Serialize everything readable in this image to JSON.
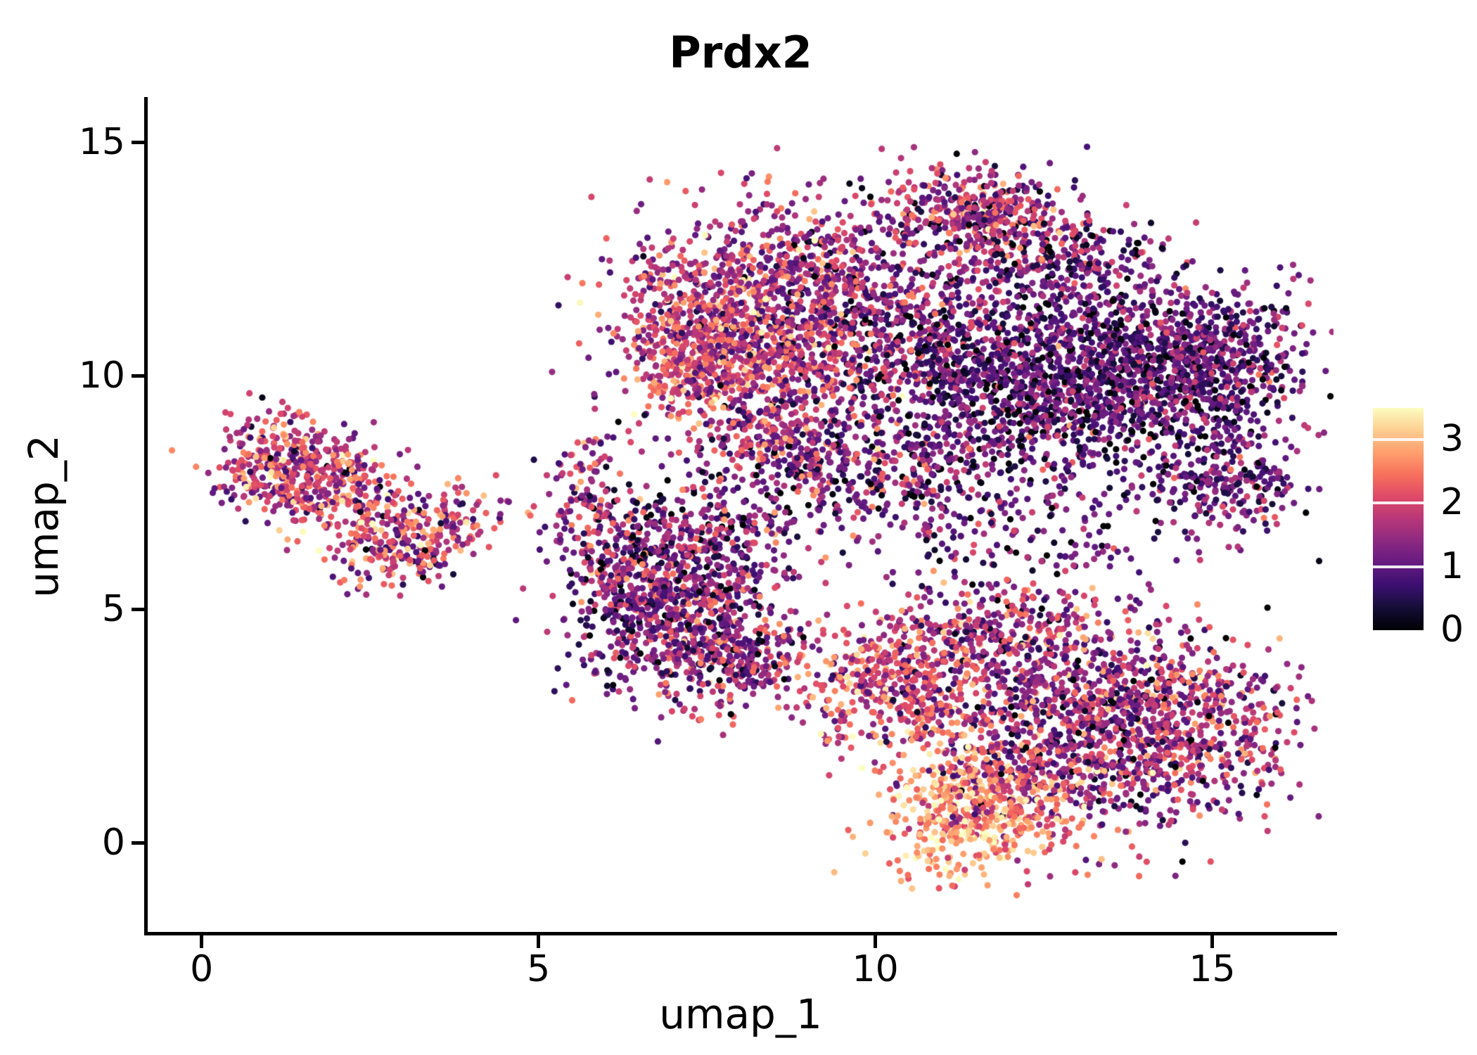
{
  "figure": {
    "background": "#ffffff"
  },
  "chart_data": {
    "type": "scatter",
    "title": "Prdx2",
    "xlabel": "umap_1",
    "ylabel": "umap_2",
    "xlim": [
      -0.8,
      16.8
    ],
    "ylim": [
      -1.9,
      15.9
    ],
    "xticks": [
      0,
      5,
      10,
      15
    ],
    "yticks": [
      0,
      5,
      10,
      15
    ],
    "grid": false,
    "point_radius_px": 4.6,
    "seed": 42,
    "colormap": {
      "name": "magma",
      "stops": [
        {
          "t": 0.0,
          "color": "#000004"
        },
        {
          "t": 0.1,
          "color": "#140e36"
        },
        {
          "t": 0.2,
          "color": "#3b0f70"
        },
        {
          "t": 0.3,
          "color": "#641a80"
        },
        {
          "t": 0.4,
          "color": "#8c2981"
        },
        {
          "t": 0.5,
          "color": "#b73779"
        },
        {
          "t": 0.6,
          "color": "#de4968"
        },
        {
          "t": 0.7,
          "color": "#f7705c"
        },
        {
          "t": 0.8,
          "color": "#fe9f6d"
        },
        {
          "t": 0.9,
          "color": "#fece91"
        },
        {
          "t": 1.0,
          "color": "#fcfdbf"
        }
      ]
    },
    "colorbar": {
      "position": "right",
      "vmin": 0,
      "vmax": 3.5,
      "ticks": [
        0,
        1,
        2,
        3
      ]
    },
    "clusters": [
      {
        "cx": 1.2,
        "cy": 8.1,
        "sx": 0.5,
        "sy": 0.55,
        "n": 320,
        "v_mean": 1.9,
        "v_sd": 0.75
      },
      {
        "cx": 2.0,
        "cy": 7.6,
        "sx": 0.55,
        "sy": 0.5,
        "n": 200,
        "v_mean": 1.8,
        "v_sd": 0.75
      },
      {
        "cx": 2.9,
        "cy": 6.4,
        "sx": 0.55,
        "sy": 0.45,
        "n": 230,
        "v_mean": 1.8,
        "v_sd": 0.8
      },
      {
        "cx": 3.6,
        "cy": 7.0,
        "sx": 0.45,
        "sy": 0.35,
        "n": 90,
        "v_mean": 1.9,
        "v_sd": 0.7
      },
      {
        "cx": 5.7,
        "cy": 7.5,
        "sx": 0.35,
        "sy": 0.7,
        "n": 110,
        "v_mean": 1.7,
        "v_sd": 0.8
      },
      {
        "cx": 6.1,
        "cy": 6.2,
        "sx": 0.4,
        "sy": 0.6,
        "n": 110,
        "v_mean": 1.5,
        "v_sd": 0.8
      },
      {
        "cx": 6.9,
        "cy": 5.0,
        "sx": 0.7,
        "sy": 0.9,
        "n": 650,
        "v_mean": 1.2,
        "v_sd": 0.7
      },
      {
        "cx": 7.9,
        "cy": 4.0,
        "sx": 0.55,
        "sy": 0.6,
        "n": 280,
        "v_mean": 1.5,
        "v_sd": 0.75
      },
      {
        "cx": 7.6,
        "cy": 6.4,
        "sx": 0.8,
        "sy": 0.6,
        "n": 280,
        "v_mean": 1.2,
        "v_sd": 0.7
      },
      {
        "cx": 7.9,
        "cy": 11.5,
        "sx": 0.9,
        "sy": 1.0,
        "n": 800,
        "v_mean": 1.7,
        "v_sd": 0.75
      },
      {
        "cx": 7.2,
        "cy": 10.4,
        "sx": 0.45,
        "sy": 0.7,
        "n": 260,
        "v_mean": 2.2,
        "v_sd": 0.6
      },
      {
        "cx": 8.5,
        "cy": 10.2,
        "sx": 0.8,
        "sy": 0.5,
        "n": 320,
        "v_mean": 1.9,
        "v_sd": 0.7
      },
      {
        "cx": 9.3,
        "cy": 12.1,
        "sx": 0.6,
        "sy": 0.7,
        "n": 260,
        "v_mean": 1.4,
        "v_sd": 0.75
      },
      {
        "cx": 10.4,
        "cy": 10.9,
        "sx": 0.8,
        "sy": 0.9,
        "n": 420,
        "v_mean": 1.2,
        "v_sd": 0.7
      },
      {
        "cx": 11.4,
        "cy": 13.5,
        "sx": 0.85,
        "sy": 0.5,
        "n": 420,
        "v_mean": 1.6,
        "v_sd": 0.75
      },
      {
        "cx": 12.6,
        "cy": 12.5,
        "sx": 0.8,
        "sy": 0.6,
        "n": 330,
        "v_mean": 1.1,
        "v_sd": 0.7
      },
      {
        "cx": 12.9,
        "cy": 9.9,
        "sx": 1.4,
        "sy": 0.95,
        "n": 1700,
        "v_mean": 0.9,
        "v_sd": 0.6
      },
      {
        "cx": 14.9,
        "cy": 10.4,
        "sx": 0.75,
        "sy": 0.8,
        "n": 480,
        "v_mean": 1.0,
        "v_sd": 0.6
      },
      {
        "cx": 15.2,
        "cy": 7.7,
        "sx": 0.5,
        "sy": 0.55,
        "n": 230,
        "v_mean": 1.1,
        "v_sd": 0.65
      },
      {
        "cx": 9.8,
        "cy": 7.9,
        "sx": 1.1,
        "sy": 0.7,
        "n": 420,
        "v_mean": 1.1,
        "v_sd": 0.7
      },
      {
        "cx": 8.4,
        "cy": 8.7,
        "sx": 0.7,
        "sy": 0.5,
        "n": 200,
        "v_mean": 1.5,
        "v_sd": 0.75
      },
      {
        "cx": 12.3,
        "cy": 6.7,
        "sx": 1.2,
        "sy": 0.8,
        "n": 200,
        "v_mean": 1.0,
        "v_sd": 0.7
      },
      {
        "cx": 10.2,
        "cy": 3.5,
        "sx": 0.7,
        "sy": 0.7,
        "n": 420,
        "v_mean": 2.0,
        "v_sd": 0.65
      },
      {
        "cx": 11.3,
        "cy": 0.7,
        "sx": 0.65,
        "sy": 0.8,
        "n": 380,
        "v_mean": 2.8,
        "v_sd": 0.45
      },
      {
        "cx": 13.2,
        "cy": 2.6,
        "sx": 1.2,
        "sy": 1.1,
        "n": 1150,
        "v_mean": 1.4,
        "v_sd": 0.7
      },
      {
        "cx": 14.9,
        "cy": 2.3,
        "sx": 0.65,
        "sy": 0.9,
        "n": 330,
        "v_mean": 1.6,
        "v_sd": 0.7
      },
      {
        "cx": 11.9,
        "cy": 4.5,
        "sx": 0.8,
        "sy": 0.55,
        "n": 280,
        "v_mean": 1.6,
        "v_sd": 0.7
      },
      {
        "cx": 12.2,
        "cy": 1.0,
        "sx": 0.8,
        "sy": 0.6,
        "n": 250,
        "v_mean": 2.2,
        "v_sd": 0.6
      }
    ]
  }
}
